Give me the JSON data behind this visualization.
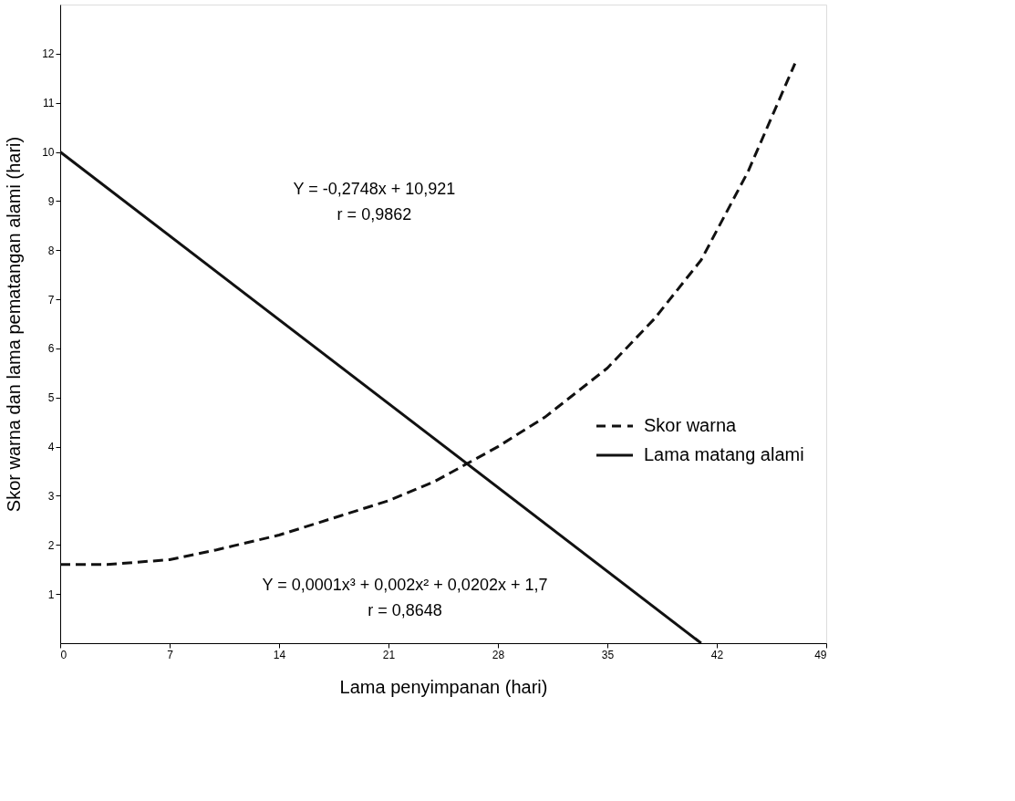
{
  "chart_data": {
    "type": "line",
    "xlabel": "Lama penyimpanan (hari)",
    "ylabel": "Skor warna dan lama pematangan alami (hari)",
    "xlim": [
      0,
      49
    ],
    "xticks": [
      0,
      7,
      14,
      21,
      28,
      35,
      42,
      49
    ],
    "ylim": [
      0,
      13
    ],
    "yticks": [
      1,
      2,
      3,
      4,
      5,
      6,
      7,
      8,
      9,
      10,
      11,
      12
    ],
    "grid": false,
    "legend": "right",
    "marker": "none",
    "series": [
      {
        "name": "Skor warna",
        "color": "#111111",
        "line_style": "dashed",
        "x": [
          0,
          3,
          7,
          10,
          14,
          18,
          21,
          24,
          28,
          31,
          35,
          38,
          41,
          44,
          47
        ],
        "values": [
          1.6,
          1.6,
          1.7,
          1.9,
          2.2,
          2.6,
          2.9,
          3.3,
          4.0,
          4.6,
          5.6,
          6.6,
          7.8,
          9.6,
          11.8
        ]
      },
      {
        "name": "Lama matang alami",
        "color": "#111111",
        "line_style": "solid",
        "x": [
          0,
          41
        ],
        "values": [
          10,
          0
        ]
      }
    ],
    "annotations": [
      "Y = -0,2748x + 10,921",
      "r = 0,9862",
      "Y = 0,0001x³ + 0,002x² + 0,0202x + 1,7",
      "r = 0,8648"
    ]
  }
}
